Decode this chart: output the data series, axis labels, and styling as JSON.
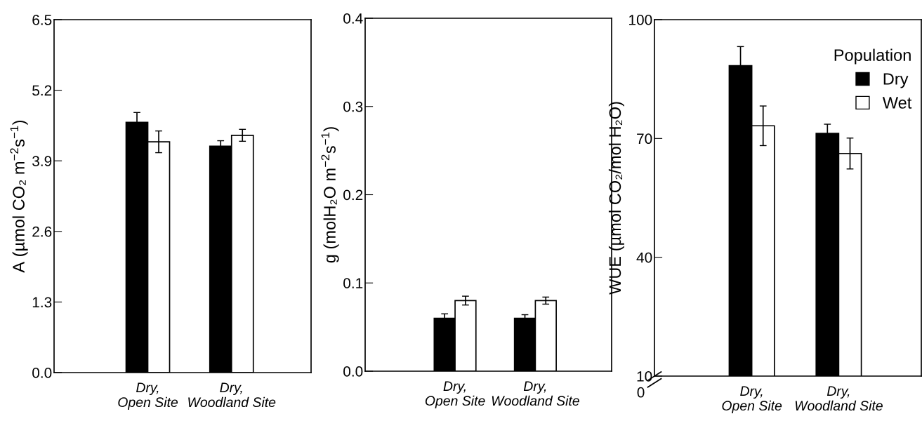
{
  "chart_data": [
    {
      "type": "bar",
      "ylabel": "A (µmol CO₂ m$^{−2}$s$^{−1}$)",
      "categories": [
        "Dry,\nOpen Site",
        "Dry,\nWoodland Site"
      ],
      "series": [
        {
          "color": "#000000",
          "values": [
            4.61,
            4.17
          ],
          "errors": [
            0.18,
            0.1
          ]
        },
        {
          "color": "#ffffff",
          "values": [
            4.25,
            4.37
          ],
          "errors": [
            0.2,
            0.11
          ]
        }
      ],
      "ylim": [
        0,
        6.5
      ],
      "yticks": [
        {
          "value": 0,
          "label": "0.0"
        },
        1.3,
        2.6,
        3.9,
        5.2,
        6.5
      ],
      "grid": false,
      "legend": false
    },
    {
      "type": "bar",
      "ylabel": "g (molH₂O m$^{−2}$s$^{−1}$)",
      "categories": [
        "Dry,\nOpen Site",
        "Dry,\nWoodland Site"
      ],
      "series": [
        {
          "color": "#000000",
          "values": [
            0.06,
            0.06
          ],
          "errors": [
            0.005,
            0.004
          ]
        },
        {
          "color": "#ffffff",
          "values": [
            0.08,
            0.08
          ],
          "errors": [
            0.005,
            0.004
          ]
        }
      ],
      "ylim": [
        0,
        0.4
      ],
      "yticks": [
        {
          "value": 0,
          "label": "0.0"
        },
        0.1,
        0.2,
        0.3,
        0.4
      ],
      "grid": false,
      "legend": false
    },
    {
      "type": "bar",
      "ylabel": "WUE (µmol CO₂/mol H₂O)",
      "categories": [
        "Dry,\nOpen Site",
        "Dry,\nWoodland Site"
      ],
      "legend_title": "Population",
      "series": [
        {
          "name": "Dry",
          "color": "#000000",
          "values": [
            88.4,
            71.3
          ],
          "errors": [
            4.8,
            2.3
          ]
        },
        {
          "name": "Wet",
          "color": "#ffffff",
          "values": [
            73.2,
            66.2
          ],
          "errors": [
            5,
            3.9
          ]
        }
      ],
      "ylim": [
        10,
        100
      ],
      "yticks": [
        10,
        40,
        70,
        100
      ],
      "annotations": [
        "0"
      ],
      "grid": false,
      "legend": "top right"
    }
  ]
}
